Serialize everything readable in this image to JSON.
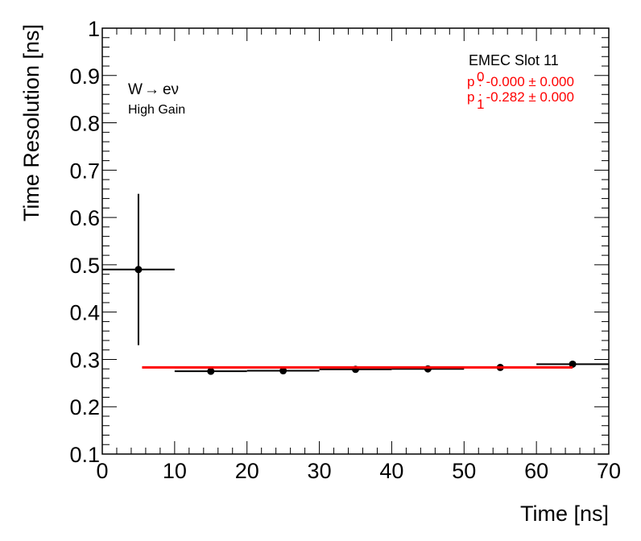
{
  "chart_data": {
    "type": "scatter",
    "xlabel": "Time [ns]",
    "ylabel": "Time Resolution [ns]",
    "xlim": [
      0,
      70
    ],
    "ylim": [
      0.1,
      1.0
    ],
    "x_ticks": [
      "0",
      "10",
      "20",
      "30",
      "40",
      "50",
      "60",
      "70"
    ],
    "y_ticks": [
      "0.1",
      "0.2",
      "0.3",
      "0.4",
      "0.5",
      "0.6",
      "0.7",
      "0.8",
      "0.9",
      "1"
    ],
    "grid": false,
    "series": [
      {
        "points": [
          {
            "x": 5,
            "y": 0.49,
            "x_err": 5,
            "y_err": 0.16
          },
          {
            "x": 15,
            "y": 0.275,
            "x_err": 5,
            "y_err": 0.004
          },
          {
            "x": 25,
            "y": 0.276,
            "x_err": 5,
            "y_err": 0.004
          },
          {
            "x": 35,
            "y": 0.279,
            "x_err": 5,
            "y_err": 0.004
          },
          {
            "x": 45,
            "y": 0.28,
            "x_err": 5,
            "y_err": 0.004
          },
          {
            "x": 55,
            "y": 0.283,
            "x_err": 5,
            "y_err": 0.004
          },
          {
            "x": 65,
            "y": 0.29,
            "x_err": 5,
            "y_err": 0.004
          }
        ]
      }
    ],
    "fit": {
      "color": "#ff0000",
      "x_range": [
        5.5,
        65
      ],
      "y_start": 0.283,
      "y_end": 0.283
    },
    "annotations": {
      "process_left": "W",
      "process_arrow": "→",
      "process_right": "eν",
      "gain": "High Gain",
      "slot": "EMEC Slot 11",
      "p0_base": "p",
      "p0_sub": "0",
      "p0_value": ": -0.000 ± 0.000",
      "p1_base": "p",
      "p1_sub": "1",
      "p1_value": ": -0.282 ± 0.000"
    }
  }
}
